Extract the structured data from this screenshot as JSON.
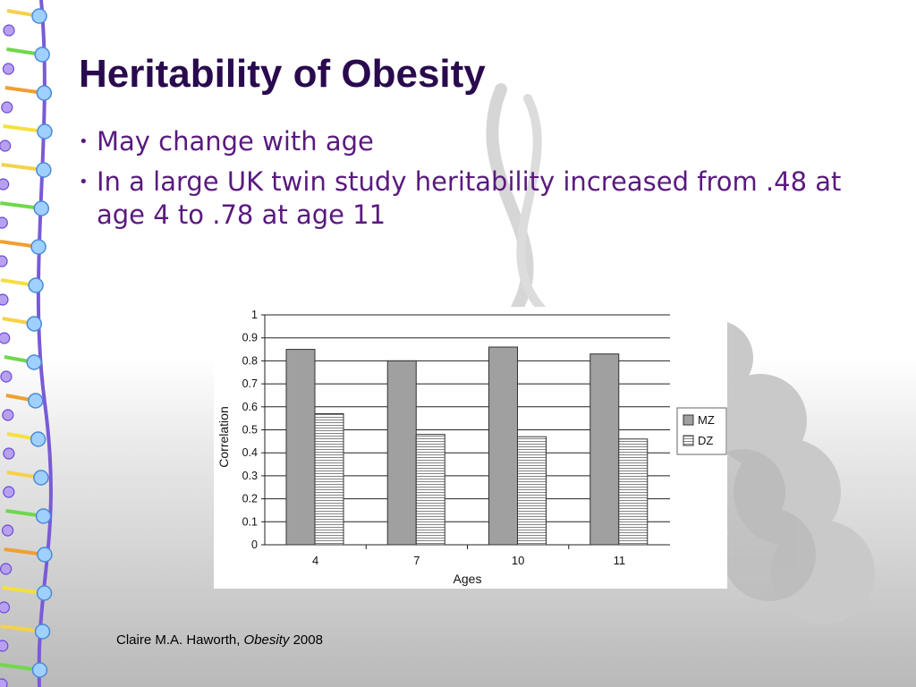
{
  "slide": {
    "title": "Heritability of Obesity",
    "bullets": [
      "May change with age",
      "In a large UK twin study heritability increased from .48 at age 4 to .78 at age 11"
    ],
    "citation": {
      "author": "Claire M.A. Haworth,",
      "journal": "Obesity",
      "year": "2008"
    }
  },
  "colors": {
    "title": "#2a0a4e",
    "bullet_text": "#5a1a7e",
    "mz_fill": "#a0a0a0",
    "dz_fill": "#ffffff"
  },
  "chart_data": {
    "type": "bar",
    "categories": [
      "4",
      "7",
      "10",
      "11"
    ],
    "series": [
      {
        "name": "MZ",
        "values": [
          0.85,
          0.8,
          0.86,
          0.83
        ]
      },
      {
        "name": "DZ",
        "values": [
          0.57,
          0.48,
          0.47,
          0.46
        ]
      }
    ],
    "title": "",
    "xlabel": "Ages",
    "ylabel": "Correlation",
    "ylim": [
      0,
      1
    ],
    "yticks": [
      "0",
      "0.1",
      "0.2",
      "0.3",
      "0.4",
      "0.5",
      "0.6",
      "0.7",
      "0.8",
      "0.9",
      "1"
    ],
    "grid": true,
    "legend": "right"
  }
}
